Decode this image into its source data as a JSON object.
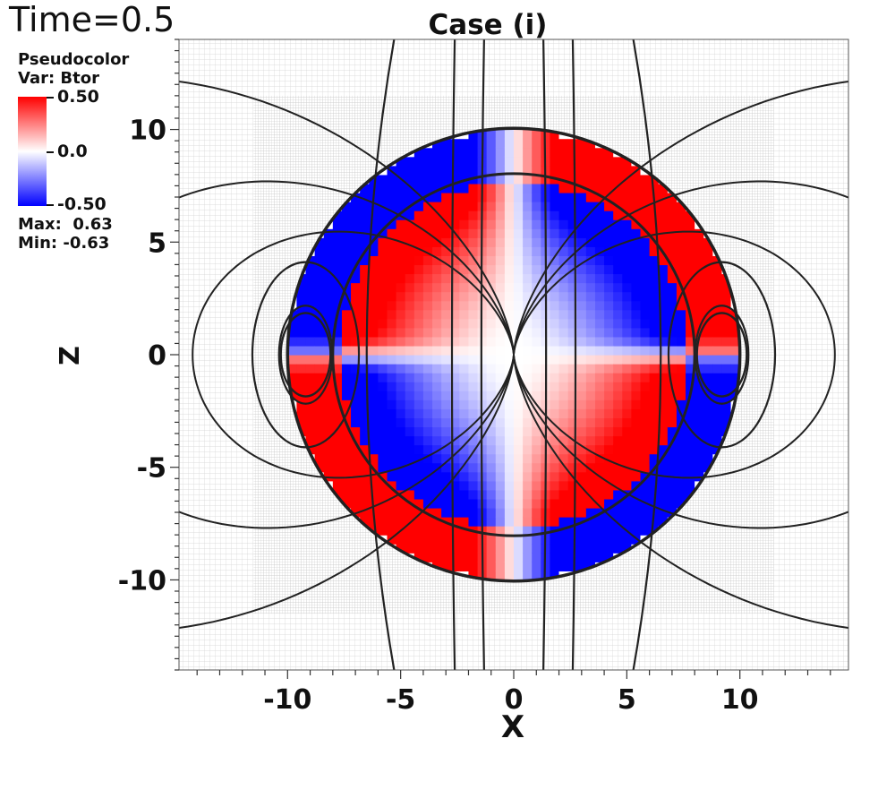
{
  "header": {
    "time_label": "Time=0.5"
  },
  "legend": {
    "title": "Pseudocolor",
    "variable": "Var: Btor",
    "max_tick": "0.50",
    "mid_tick": "0.0",
    "min_tick": "-0.50",
    "max_stat": "Max:  0.63",
    "min_stat": "Min: -0.63",
    "colors": {
      "high": "#ff0000",
      "mid": "#ffffff",
      "low": "#0000ff"
    }
  },
  "chart_data": {
    "type": "heatmap",
    "title": "Case (i)",
    "xlabel": "X",
    "ylabel": "Z",
    "xlim": [
      -14.8,
      14.8
    ],
    "ylim": [
      -14,
      14
    ],
    "x_ticks": [
      "-10",
      "-5",
      "0",
      "5",
      "10"
    ],
    "y_ticks": [
      "10",
      "5",
      "0",
      "-5",
      "-10"
    ],
    "x_tick_values": [
      -10,
      -5,
      0,
      5,
      10
    ],
    "y_tick_values": [
      10,
      5,
      0,
      -5,
      -10
    ],
    "variable": "Btor",
    "color_range": [
      -0.5,
      0.5
    ],
    "data_max": 0.63,
    "data_min": -0.63,
    "colormap": [
      "#0000ff",
      "#ffffff",
      "#ff0000"
    ],
    "star_radius": 10,
    "inner_radius": 8,
    "grid": true,
    "field_line_color": "#222222"
  }
}
